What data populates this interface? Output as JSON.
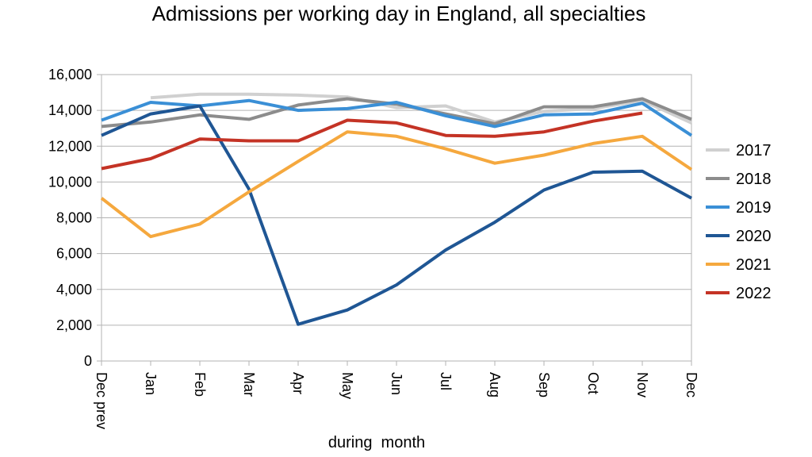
{
  "chart_data": {
    "type": "line",
    "title": "Admissions per working day in England, all specialties",
    "xlabel": "during  month",
    "ylabel": "",
    "categories": [
      "Dec prev",
      "Jan",
      "Feb",
      "Mar",
      "Apr",
      "May",
      "Jun",
      "Jul",
      "Aug",
      "Sep",
      "Oct",
      "Nov",
      "Dec"
    ],
    "ylim": [
      0,
      16000
    ],
    "yticks": [
      0,
      2000,
      4000,
      6000,
      8000,
      10000,
      12000,
      14000,
      16000
    ],
    "ytick_labels": [
      "0",
      "2,000",
      "4,000",
      "6,000",
      "8,000",
      "10,000",
      "12,000",
      "14,000",
      "16,000"
    ],
    "grid": "horizontal",
    "legend_position": "right",
    "series": [
      {
        "name": "2017",
        "color": "#d0d0d0",
        "values": [
          null,
          14700,
          14900,
          14900,
          14850,
          14750,
          14150,
          14250,
          13350,
          13950,
          14100,
          14550,
          13300
        ]
      },
      {
        "name": "2018",
        "color": "#8c8c8c",
        "values": [
          13100,
          13350,
          13750,
          13500,
          14300,
          14650,
          14350,
          13800,
          13250,
          14200,
          14200,
          14650,
          13500
        ]
      },
      {
        "name": "2019",
        "color": "#3a8fd6",
        "values": [
          13450,
          14450,
          14250,
          14550,
          14000,
          14100,
          14450,
          13700,
          13100,
          13750,
          13800,
          14400,
          12600
        ]
      },
      {
        "name": "2020",
        "color": "#1f5694",
        "values": [
          12600,
          13800,
          14250,
          9600,
          2050,
          2850,
          4250,
          6200,
          7750,
          9550,
          10550,
          10600,
          9100
        ]
      },
      {
        "name": "2021",
        "color": "#f5a83e",
        "values": [
          9100,
          6950,
          7650,
          9450,
          11150,
          12800,
          12550,
          11850,
          11050,
          11500,
          12150,
          12550,
          10700
        ]
      },
      {
        "name": "2022",
        "color": "#c43325",
        "values": [
          10750,
          11300,
          12400,
          12300,
          12300,
          13450,
          13300,
          12600,
          12550,
          12800,
          13400,
          13850,
          null
        ]
      }
    ]
  }
}
